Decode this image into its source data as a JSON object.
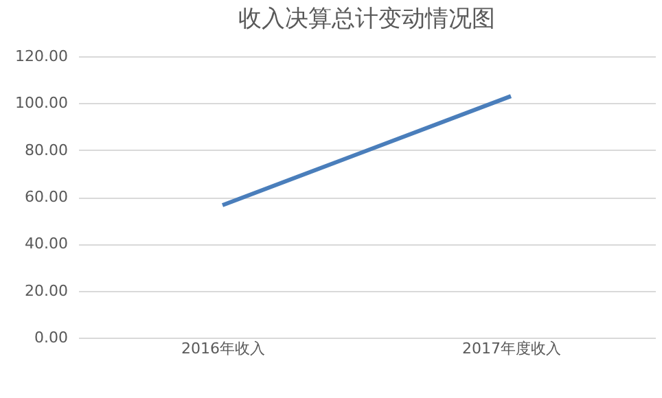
{
  "chart_data": {
    "type": "line",
    "title": "收入决算总计变动情况图",
    "categories": [
      "2016年收入",
      "2017年度收入"
    ],
    "series": [
      {
        "color": "#4a7ebb",
        "values": [
          56.5,
          103
        ]
      }
    ],
    "ylim": [
      0,
      120
    ],
    "yticks": [
      {
        "value": 0,
        "label": "0.00"
      },
      {
        "value": 20,
        "label": "20.00"
      },
      {
        "value": 40,
        "label": "40.00"
      },
      {
        "value": 60,
        "label": "60.00"
      },
      {
        "value": 80,
        "label": "80.00"
      },
      {
        "value": 100,
        "label": "100.00"
      },
      {
        "value": 120,
        "label": "120.00"
      }
    ],
    "grid": "y",
    "marker": "none",
    "line_style": "solid"
  }
}
